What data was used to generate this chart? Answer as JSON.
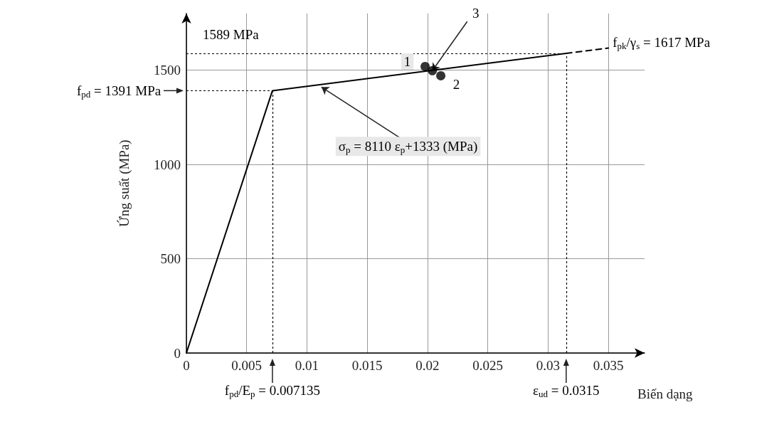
{
  "chart_data": {
    "type": "line",
    "xlabel": "Biến dạng",
    "ylabel": "Ứng suất (MPa)",
    "xlim": [
      0,
      0.038
    ],
    "ylim": [
      0,
      1800
    ],
    "xticks": [
      0,
      0.005,
      0.01,
      0.015,
      0.02,
      0.025,
      0.03,
      0.035
    ],
    "yticks": [
      0,
      500,
      1000,
      1500
    ],
    "grid": true,
    "series": [
      {
        "color": "#000000",
        "x": [
          0,
          0.007135,
          0.0315
        ],
        "values": [
          0,
          1391,
          1589
        ],
        "line_style": "solid",
        "marker": "none"
      },
      {
        "color": "#000000",
        "x": [
          0.0315,
          0.035
        ],
        "values": [
          1589,
          1617
        ],
        "line_style": "dashed",
        "marker": "none"
      },
      {
        "type": "scatter",
        "color": "#000000",
        "x": [
          0.0198,
          0.0211,
          0.0204
        ],
        "values": [
          1519,
          1470,
          1497
        ],
        "marker": "circle"
      }
    ],
    "ref_lines": [
      {
        "axis": "y",
        "value": 1589,
        "label": "1589 MPa",
        "line_style": "dotted"
      },
      {
        "axis": "y",
        "value": 1391,
        "label": "f$_{pd}$ = 1391 MPa",
        "line_style": "dotted"
      },
      {
        "axis": "x",
        "value": 0.007135,
        "label": "f$_{pd}$/E$_{p}$ = 0.007135",
        "line_style": "dotted"
      },
      {
        "axis": "x",
        "value": 0.0315,
        "label": "ε$_{ud}$ = 0.0315",
        "line_style": "dotted"
      }
    ],
    "annotations": [
      {
        "text": "σ$_{p}$ = 8110 ε$_{p}$+1333 (MPa)",
        "x": 0.0112,
        "y": 1410
      },
      {
        "text": "f$_{pk}$/γ$_{s}$ = 1617 MPa",
        "x": 0.035,
        "y": 1617
      },
      {
        "text": "1",
        "x": 0.0198,
        "y": 1519
      },
      {
        "text": "2",
        "x": 0.0211,
        "y": 1470
      },
      {
        "text": "3",
        "x": 0.0204,
        "y": 1497
      }
    ]
  }
}
